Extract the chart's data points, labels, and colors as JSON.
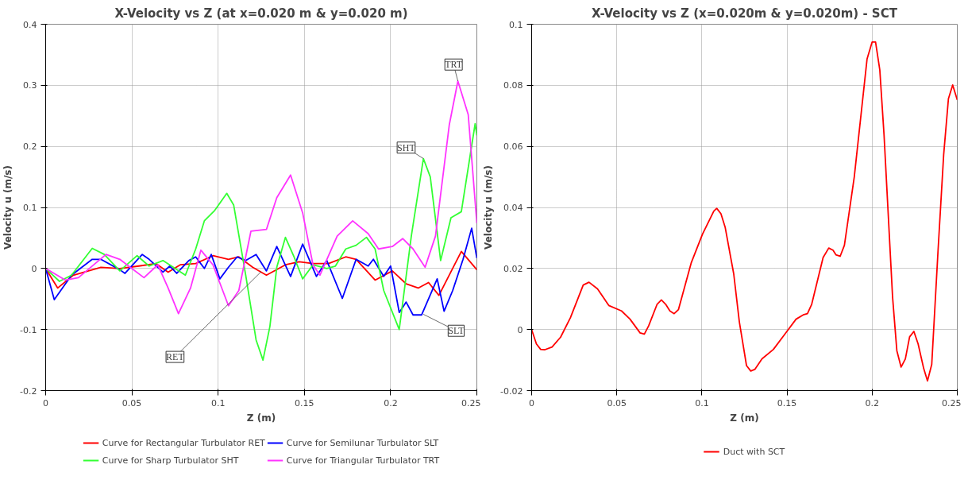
{
  "chart_data": [
    {
      "type": "line",
      "title": "X-Velocity vs Z (at x=0.020 m & y=0.020 m)",
      "xlabel": "Z (m)",
      "ylabel": "Velocity u (m/s)",
      "xlim": [
        0,
        0.25
      ],
      "ylim": [
        -0.2,
        0.4
      ],
      "xticks": [
        0,
        0.05,
        0.1,
        0.15,
        0.2,
        0.25
      ],
      "yticks": [
        -0.2,
        -0.1,
        0,
        0.1,
        0.2,
        0.3,
        0.4
      ],
      "grid": true,
      "legend": "bottom",
      "series": [
        {
          "name": "Curve for Rectangular Turbulator RET",
          "color": "#ff0000",
          "x": [
            0,
            0.007,
            0.016,
            0.032,
            0.043,
            0.054,
            0.064,
            0.071,
            0.078,
            0.087,
            0.097,
            0.106,
            0.112,
            0.12,
            0.128,
            0.139,
            0.147,
            0.155,
            0.164,
            0.174,
            0.18,
            0.191,
            0.201,
            0.209,
            0.216,
            0.222,
            0.228,
            0.241,
            0.25
          ],
          "values": [
            0,
            -0.032,
            -0.011,
            0.002,
            0,
            0.004,
            0.008,
            -0.006,
            0.006,
            0.008,
            0.021,
            0.015,
            0.019,
            0.002,
            -0.011,
            0.006,
            0.011,
            0.008,
            0.008,
            0.019,
            0.015,
            -0.019,
            -0.004,
            -0.025,
            -0.032,
            -0.023,
            -0.044,
            0.028,
            -0.002
          ]
        },
        {
          "name": "Curve for Semilunar Turbulator SLT",
          "color": "#0000ff",
          "x": [
            0,
            0.005,
            0.015,
            0.027,
            0.032,
            0.043,
            0.046,
            0.056,
            0.06,
            0.068,
            0.072,
            0.076,
            0.083,
            0.087,
            0.092,
            0.096,
            0.101,
            0.106,
            0.111,
            0.116,
            0.122,
            0.128,
            0.134,
            0.142,
            0.149,
            0.157,
            0.163,
            0.172,
            0.18,
            0.187,
            0.19,
            0.196,
            0.2,
            0.205,
            0.209,
            0.213,
            0.218,
            0.227,
            0.231,
            0.236,
            0.242,
            0.247,
            0.25
          ],
          "values": [
            0,
            -0.051,
            -0.011,
            0.015,
            0.015,
            -0.002,
            -0.008,
            0.023,
            0.015,
            -0.006,
            0.004,
            -0.008,
            0.013,
            0.019,
            0,
            0.023,
            -0.017,
            0.002,
            0.019,
            0.013,
            0.023,
            -0.004,
            0.036,
            -0.013,
            0.04,
            -0.013,
            0.013,
            -0.049,
            0.015,
            0.004,
            0.015,
            -0.013,
            0.004,
            -0.072,
            -0.055,
            -0.076,
            -0.076,
            -0.017,
            -0.07,
            -0.036,
            0.015,
            0.066,
            0.017
          ]
        },
        {
          "name": "Curve for Sharp Turbulator SHT",
          "color": "#33ff33",
          "x": [
            0,
            0.008,
            0.015,
            0.027,
            0.034,
            0.043,
            0.053,
            0.06,
            0.068,
            0.081,
            0.087,
            0.092,
            0.098,
            0.105,
            0.109,
            0.116,
            0.122,
            0.126,
            0.13,
            0.134,
            0.139,
            0.144,
            0.149,
            0.155,
            0.163,
            0.168,
            0.174,
            0.18,
            0.186,
            0.191,
            0.196,
            0.205,
            0.212,
            0.219,
            0.223,
            0.229,
            0.235,
            0.241,
            0.249,
            0.25
          ],
          "values": [
            0,
            -0.021,
            -0.011,
            0.033,
            0.023,
            -0.004,
            0.021,
            0.004,
            0.013,
            -0.011,
            0.032,
            0.078,
            0.095,
            0.123,
            0.104,
            -0.011,
            -0.117,
            -0.15,
            -0.095,
            0.002,
            0.051,
            0.019,
            -0.017,
            0.006,
            0,
            0.004,
            0.032,
            0.038,
            0.051,
            0.032,
            -0.036,
            -0.1,
            0.053,
            0.18,
            0.15,
            0.013,
            0.083,
            0.093,
            0.237,
            0.218
          ]
        },
        {
          "name": "Curve for Triangular Turbulator TRT",
          "color": "#ff33ff",
          "x": [
            0,
            0.0115,
            0.019,
            0.035,
            0.043,
            0.049,
            0.057,
            0.065,
            0.071,
            0.077,
            0.084,
            0.09,
            0.097,
            0.106,
            0.112,
            0.119,
            0.128,
            0.134,
            0.142,
            0.149,
            0.155,
            0.159,
            0.169,
            0.178,
            0.187,
            0.193,
            0.201,
            0.207,
            0.213,
            0.22,
            0.226,
            0.234,
            0.239,
            0.245,
            0.25
          ],
          "values": [
            0,
            -0.019,
            -0.015,
            0.023,
            0.015,
            0.002,
            -0.015,
            0.006,
            -0.032,
            -0.074,
            -0.032,
            0.03,
            0.006,
            -0.061,
            -0.036,
            0.061,
            0.064,
            0.116,
            0.153,
            0.091,
            0.006,
            -0.011,
            0.053,
            0.078,
            0.057,
            0.032,
            0.036,
            0.049,
            0.032,
            0.002,
            0.053,
            0.235,
            0.307,
            0.252,
            0.074
          ]
        }
      ],
      "annotations": [
        {
          "text": "RET",
          "x": 0.125,
          "y": -0.005
        },
        {
          "text": "SLT",
          "x": 0.219,
          "y": -0.075
        },
        {
          "text": "SHT",
          "x": 0.219,
          "y": 0.18
        },
        {
          "text": "TRT",
          "x": 0.239,
          "y": 0.307
        }
      ]
    },
    {
      "type": "line",
      "title": "X-Velocity vs Z (x=0.020m & y=0.020m) - SCT",
      "xlabel": "Z (m)",
      "ylabel": "Velocity u (m/s)",
      "xlim": [
        0,
        0.25
      ],
      "ylim": [
        -0.02,
        0.1
      ],
      "xticks": [
        0,
        0.05,
        0.1,
        0.15,
        0.2,
        0.25
      ],
      "yticks": [
        -0.02,
        0,
        0.02,
        0.04,
        0.06,
        0.08,
        0.1
      ],
      "grid": true,
      "legend": "bottom",
      "series": [
        {
          "name": "Duct with SCT",
          "color": "#ff0000",
          "x": [
            0,
            0.0028,
            0.0053,
            0.0078,
            0.012,
            0.017,
            0.0228,
            0.0303,
            0.0337,
            0.0387,
            0.0453,
            0.0528,
            0.0578,
            0.0637,
            0.0662,
            0.0687,
            0.0737,
            0.0762,
            0.0787,
            0.0812,
            0.0837,
            0.0862,
            0.0937,
            0.1003,
            0.107,
            0.1087,
            0.1112,
            0.1137,
            0.1187,
            0.122,
            0.1262,
            0.1287,
            0.1312,
            0.1353,
            0.142,
            0.1487,
            0.1553,
            0.1595,
            0.162,
            0.1645,
            0.1712,
            0.1745,
            0.177,
            0.1787,
            0.1812,
            0.1837,
            0.1895,
            0.197,
            0.2,
            0.202,
            0.2045,
            0.207,
            0.212,
            0.2145,
            0.217,
            0.2195,
            0.222,
            0.2245,
            0.227,
            0.2303,
            0.2325,
            0.235,
            0.2387,
            0.242,
            0.2448,
            0.2473,
            0.25
          ],
          "values": [
            0,
            -0.0047,
            -0.0065,
            -0.0066,
            -0.0057,
            -0.0025,
            0.0039,
            0.0146,
            0.0155,
            0.0133,
            0.0079,
            0.0061,
            0.0034,
            -0.0011,
            -0.0015,
            0.0012,
            0.0083,
            0.0097,
            0.0083,
            0.0061,
            0.0052,
            0.0065,
            0.0218,
            0.0312,
            0.0388,
            0.0397,
            0.0379,
            0.0334,
            0.0182,
            0.0025,
            -0.0118,
            -0.0136,
            -0.013,
            -0.0096,
            -0.0065,
            -0.0015,
            0.0034,
            0.0048,
            0.0052,
            0.0083,
            0.0236,
            0.0267,
            0.026,
            0.0245,
            0.024,
            0.0276,
            0.05,
            0.0886,
            0.0942,
            0.0942,
            0.085,
            0.0636,
            0.0106,
            -0.0069,
            -0.0123,
            -0.0096,
            -0.0024,
            -0.0006,
            -0.0047,
            -0.0128,
            -0.0168,
            -0.0114,
            0.0258,
            0.0572,
            0.0756,
            0.0801,
            0.0752
          ]
        }
      ]
    }
  ]
}
